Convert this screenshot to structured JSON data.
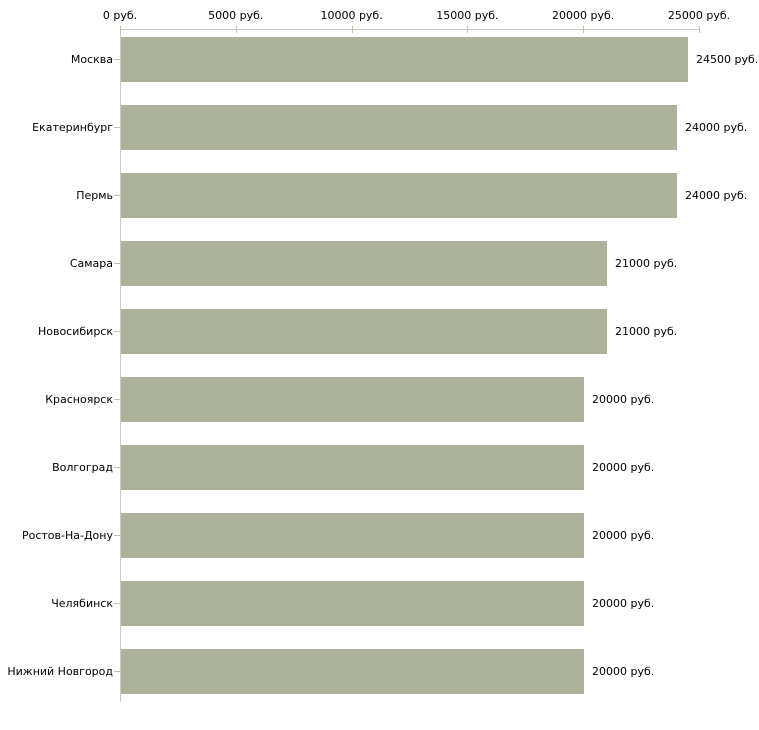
{
  "chart_data": {
    "type": "bar",
    "orientation": "horizontal",
    "title": "",
    "legend": null,
    "grid": false,
    "categories": [
      "Москва",
      "Екатеринбург",
      "Пермь",
      "Самара",
      "Новосибирск",
      "Красноярск",
      "Волгоград",
      "Ростов-На-Дону",
      "Челябинск",
      "Нижний Новгород"
    ],
    "values": [
      24500,
      24000,
      24000,
      21000,
      21000,
      20000,
      20000,
      20000,
      20000,
      20000
    ],
    "value_labels": [
      "24500 руб.",
      "24000 руб.",
      "24000 руб.",
      "21000 руб.",
      "21000 руб.",
      "20000 руб.",
      "20000 руб.",
      "20000 руб.",
      "20000 руб.",
      "20000 руб."
    ],
    "x_axis": {
      "position": "top",
      "range": [
        0,
        25000
      ],
      "ticks": [
        0,
        5000,
        10000,
        15000,
        20000,
        25000
      ],
      "tick_labels": [
        "0 руб.",
        "5000 руб.",
        "10000 руб.",
        "15000 руб.",
        "20000 руб.",
        "25000 руб."
      ]
    },
    "colors": {
      "bar": "#adb39a",
      "axis_line": "#c9c9c9",
      "tick_mark": "#c5c1a0",
      "text": "#000000",
      "background": "#ffffff"
    }
  }
}
